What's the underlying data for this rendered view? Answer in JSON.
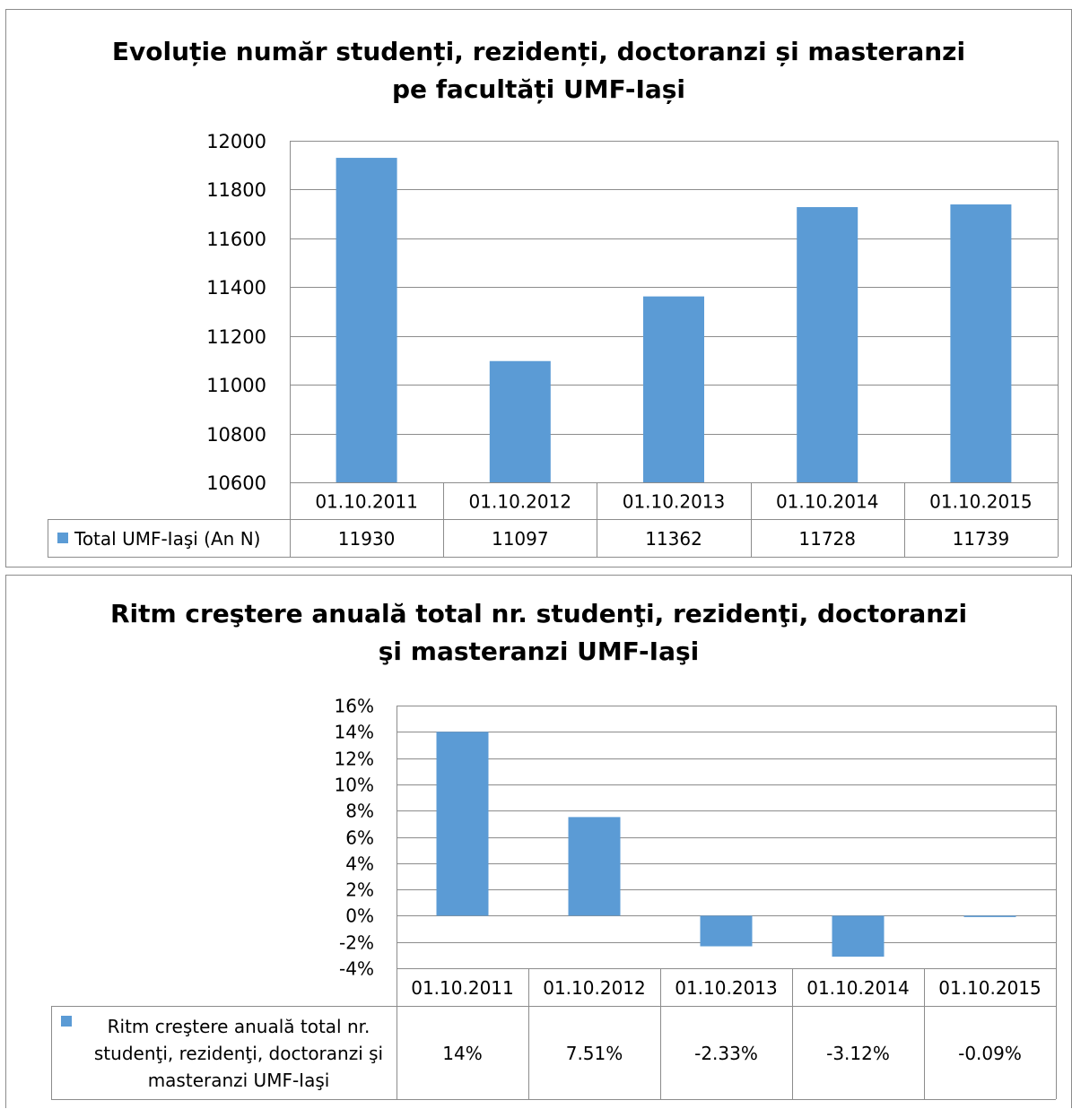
{
  "chart_data": [
    {
      "type": "bar",
      "title_line1": "Evoluție număr studenți, rezidenți, doctoranzi și masteranzi",
      "title_line2": "pe facultăți UMF-Iași",
      "categories": [
        "01.10.2011",
        "01.10.2012",
        "01.10.2013",
        "01.10.2014",
        "01.10.2015"
      ],
      "series": [
        {
          "name": "Total UMF-Iaşi (An N)",
          "values": [
            11930,
            11097,
            11362,
            11728,
            11739
          ],
          "table_labels": [
            "11930",
            "11097",
            "11362",
            "11728",
            "11739"
          ]
        }
      ],
      "ylim": [
        10600,
        12000
      ],
      "yticks": [
        10600,
        10800,
        11000,
        11200,
        11400,
        11600,
        11800,
        12000
      ],
      "ytick_labels": [
        "10600",
        "10800",
        "11000",
        "11200",
        "11400",
        "11600",
        "11800",
        "12000"
      ],
      "grid": true,
      "legend": "data-table",
      "bar_color": "#5b9bd5"
    },
    {
      "type": "bar",
      "title_line1": "Ritm creştere anuală total nr. studenţi, rezidenţi, doctoranzi",
      "title_line2": "şi masteranzi UMF-Iaşi",
      "categories": [
        "01.10.2011",
        "01.10.2012",
        "01.10.2013",
        "01.10.2014",
        "01.10.2015"
      ],
      "series": [
        {
          "name": "Ritm creştere anuală total nr. studenţi, rezidenţi, doctoranzi şi masteranzi UMF-Iaşi",
          "name_lines": [
            "Ritm creştere anuală total nr.",
            "studenţi, rezidenţi, doctoranzi şi",
            "masteranzi UMF-Iaşi"
          ],
          "values": [
            14,
            7.51,
            -2.33,
            -3.12,
            -0.09
          ],
          "table_labels": [
            "14%",
            "7.51%",
            "-2.33%",
            "-3.12%",
            "-0.09%"
          ]
        }
      ],
      "ylim": [
        -4,
        16
      ],
      "yticks": [
        -4,
        -2,
        0,
        2,
        4,
        6,
        8,
        10,
        12,
        14,
        16
      ],
      "ytick_labels": [
        "-4%",
        "-2%",
        "0%",
        "2%",
        "4%",
        "6%",
        "8%",
        "10%",
        "12%",
        "14%",
        "16%"
      ],
      "grid": true,
      "legend": "data-table",
      "bar_color": "#5b9bd5"
    }
  ]
}
